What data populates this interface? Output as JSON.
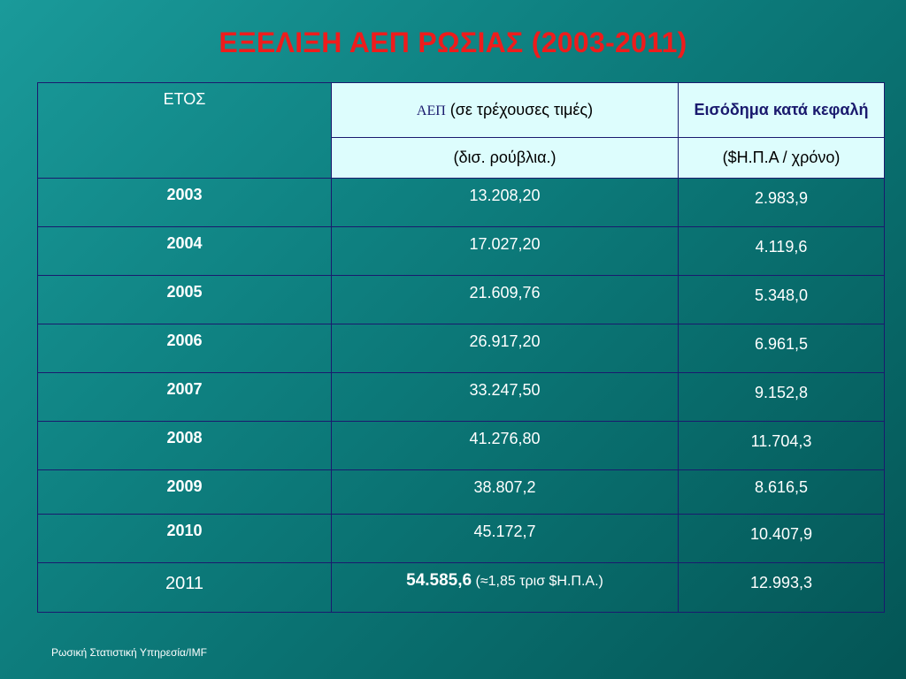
{
  "title": "ΕΞΕΛΙΞΗ ΑΕΠ ΡΩΣΙΑΣ (2003-2011)",
  "table": {
    "header": {
      "year_label": "ΕΤΟΣ",
      "gdp_abbr": "ΑΕΠ",
      "gdp_open_paren": " (",
      "gdp_desc": "σε τρέχουσες τιμές)",
      "income_label": "Εισόδημα κατά κεφαλή",
      "gdp_unit": "(δισ. ρούβλια.)",
      "income_unit": "($Η.Π.Α / χρόνο)"
    },
    "rows": [
      {
        "year": "2003",
        "gdp": "13.208,20",
        "income": "2.983,9"
      },
      {
        "year": "2004",
        "gdp": "17.027,20",
        "income": "4.119,6"
      },
      {
        "year": "2005",
        "gdp": "21.609,76",
        "income": "5.348,0"
      },
      {
        "year": "2006",
        "gdp": "26.917,20",
        "income": "6.961,5"
      },
      {
        "year": "2007",
        "gdp": "33.247,50",
        "income": "9.152,8"
      },
      {
        "year": "2008",
        "gdp": "41.276,80",
        "income": "11.704,3"
      },
      {
        "year": "2009",
        "gdp": "38.807,2",
        "income": "8.616,5"
      },
      {
        "year": "2010",
        "gdp": "45.172,7",
        "income": "10.407,9"
      },
      {
        "year": "2011",
        "gdp": "54.585,6",
        "gdp_note": " (≈1,85 τρισ $Η.Π.Α.)",
        "income": "12.993,3"
      }
    ]
  },
  "source": "Ρωσική Στατιστική Υπηρεσία/IMF",
  "colors": {
    "title": "#ee1c1c",
    "background": "#0f8282",
    "header_fill": "#ddfdfd",
    "border": "#1a1a6e"
  }
}
